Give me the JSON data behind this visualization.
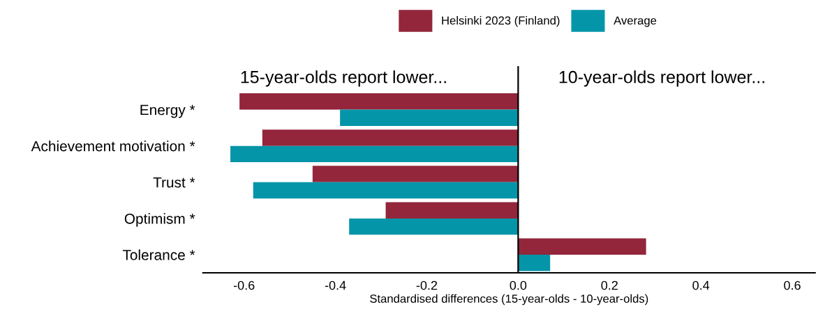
{
  "chart_data": {
    "type": "bar",
    "orientation": "horizontal",
    "xlabel": "Standardised differences (15-year-olds - 10-year-olds)",
    "categories": [
      "Energy *",
      "Achievement motivation *",
      "Trust *",
      "Optimism *",
      "Tolerance *"
    ],
    "series": [
      {
        "name": "Helsinki 2023 (Finland)",
        "color": "#93263b",
        "values": [
          -0.61,
          -0.56,
          -0.45,
          -0.29,
          0.28
        ]
      },
      {
        "name": "Average",
        "color": "#0595a9",
        "values": [
          -0.39,
          -0.63,
          -0.58,
          -0.37,
          0.07
        ]
      }
    ],
    "xlim": [
      -0.69,
      0.65
    ],
    "xticks": [
      {
        "value": -0.6,
        "label": "-0.6"
      },
      {
        "value": -0.4,
        "label": "-0.4"
      },
      {
        "value": -0.2,
        "label": "-0.2"
      },
      {
        "value": 0.0,
        "label": "0.0"
      },
      {
        "value": 0.2,
        "label": "0.2"
      },
      {
        "value": 0.4,
        "label": "0.4"
      },
      {
        "value": 0.6,
        "label": "0.6"
      }
    ],
    "ref_lines": [
      {
        "axis": "x",
        "value": 0,
        "color": "#000000"
      }
    ],
    "annotations": [
      "15-year-olds report lower...",
      "10-year-olds report lower..."
    ],
    "legend": "top",
    "grid": false
  }
}
